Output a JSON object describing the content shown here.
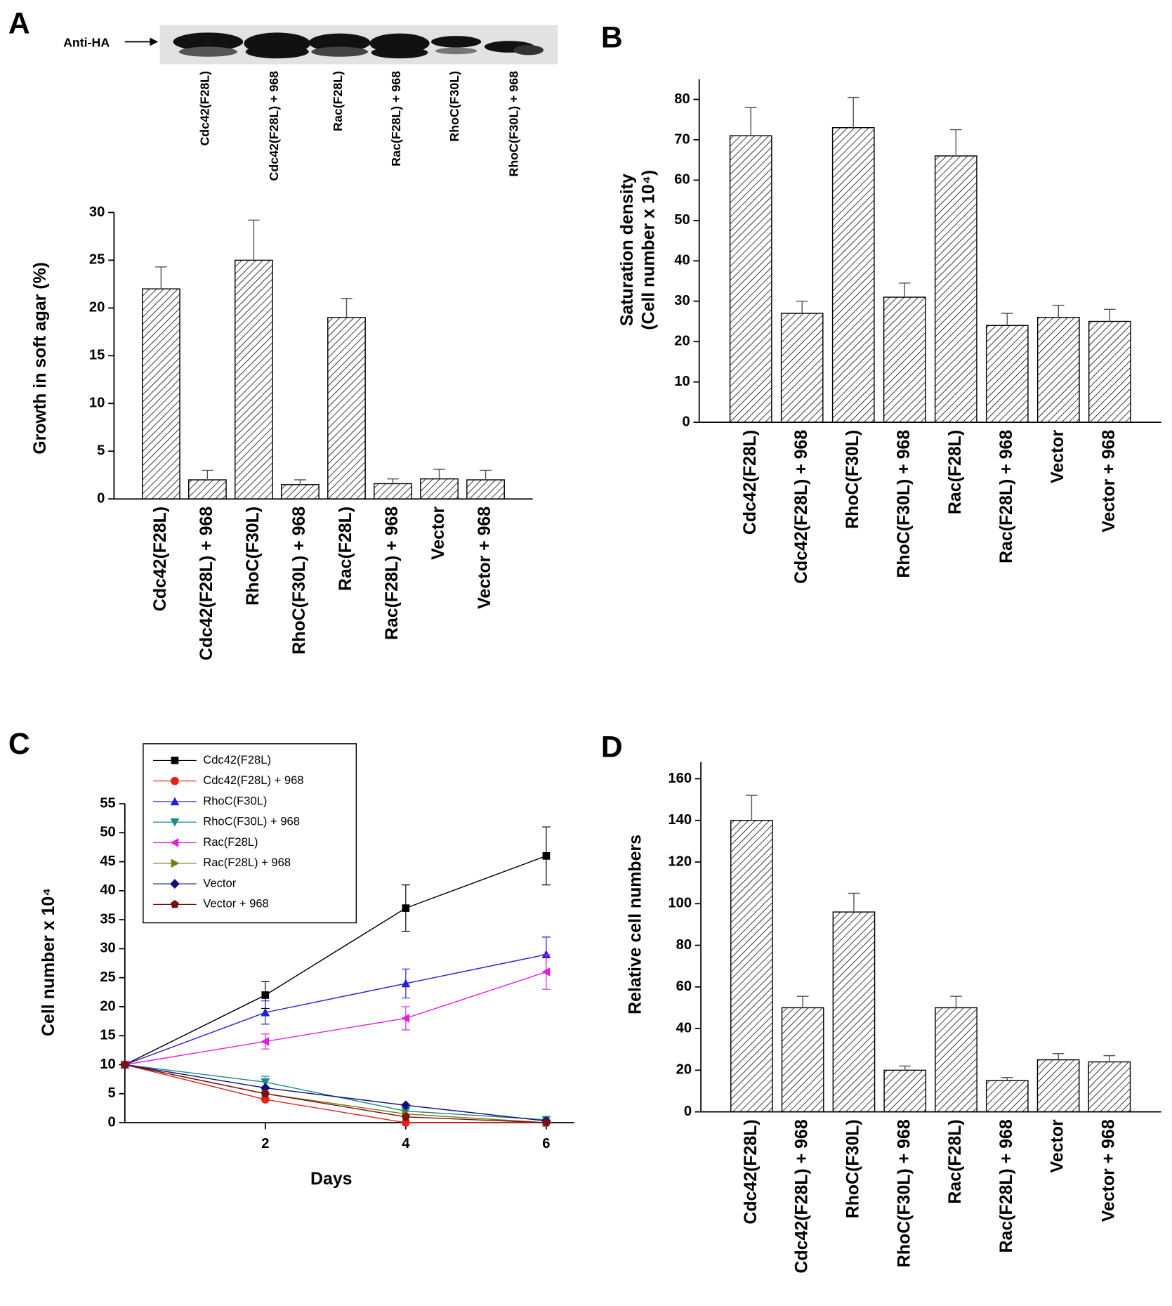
{
  "chart_data": [
    {
      "type": "bar",
      "panel": "A",
      "blot_label": "Anti-HA",
      "blot_lanes": [
        "Cdc42(F28L)",
        "Cdc42(F28L) + 968",
        "Rac(F28L)",
        "Rac(F28L) + 968",
        "RhoC(F30L)",
        "RhoC(F30L) + 968"
      ],
      "ylabel": "Growth in soft agar (%)",
      "categories": [
        "Cdc42(F28L)",
        "Cdc42(F28L) + 968",
        "RhoC(F30L)",
        "RhoC(F30L) + 968",
        "Rac(F28L)",
        "Rac(F28L) + 968",
        "Vector",
        "Vector + 968"
      ],
      "values": [
        22,
        2,
        25,
        1.5,
        19,
        1.6,
        2.1,
        2
      ],
      "errors": [
        2.3,
        1,
        4.2,
        0.5,
        2,
        0.5,
        1,
        1
      ],
      "ylim": [
        0,
        30
      ],
      "yticks": [
        0,
        5,
        10,
        15,
        20,
        25,
        30
      ]
    },
    {
      "type": "bar",
      "panel": "B",
      "ylabel": [
        "Saturation density",
        "(Cell number x 10⁴)"
      ],
      "categories": [
        "Cdc42(F28L)",
        "Cdc42(F28L) + 968",
        "RhoC(F30L)",
        "RhoC(F30L) + 968",
        "Rac(F28L)",
        "Rac(F28L) + 968",
        "Vector",
        "Vector + 968"
      ],
      "values": [
        71,
        27,
        73,
        31,
        66,
        24,
        26,
        25
      ],
      "errors": [
        7,
        3,
        7.5,
        3.5,
        6.5,
        3,
        3,
        3
      ],
      "ylim": [
        0,
        85
      ],
      "yticks": [
        0,
        10,
        20,
        30,
        40,
        50,
        60,
        70,
        80
      ]
    },
    {
      "type": "line",
      "panel": "C",
      "xlabel": "Days",
      "ylabel": "Cell number x 10⁴",
      "x": [
        0,
        2,
        4,
        6
      ],
      "xlim": [
        0,
        6.4
      ],
      "xticks": [
        2,
        4,
        6
      ],
      "ylim": [
        0,
        55
      ],
      "yticks": [
        0,
        5,
        10,
        15,
        20,
        25,
        30,
        35,
        40,
        45,
        50,
        55
      ],
      "series": [
        {
          "name": "Cdc42(F28L)",
          "color": "#000000",
          "marker": "square",
          "values": [
            10,
            22,
            37,
            46
          ],
          "errors": [
            0,
            2.3,
            4,
            5
          ]
        },
        {
          "name": "Cdc42(F28L) + 968",
          "color": "#e8201a",
          "marker": "circle",
          "values": [
            10,
            4,
            0,
            0
          ]
        },
        {
          "name": "RhoC(F30L)",
          "color": "#2020e0",
          "marker": "triangle-up",
          "values": [
            10,
            19,
            24,
            29
          ],
          "errors": [
            0,
            2,
            2.5,
            3
          ]
        },
        {
          "name": "RhoC(F30L) + 968",
          "color": "#1a8a8a",
          "marker": "triangle-down",
          "values": [
            10,
            7,
            2,
            0.5
          ],
          "errors": [
            0,
            1,
            0,
            0
          ]
        },
        {
          "name": "Rac(F28L)",
          "color": "#e020e0",
          "marker": "triangle-left",
          "values": [
            10,
            14,
            18,
            26
          ],
          "errors": [
            0,
            1.3,
            2,
            3
          ]
        },
        {
          "name": "Rac(F28L) + 968",
          "color": "#7a7a10",
          "marker": "triangle-right",
          "values": [
            10,
            5,
            1.5,
            0
          ]
        },
        {
          "name": "Vector",
          "color": "#10107a",
          "marker": "diamond",
          "values": [
            10,
            6,
            3,
            0.3
          ]
        },
        {
          "name": "Vector + 968",
          "color": "#7a1010",
          "marker": "pentagon",
          "values": [
            10,
            5,
            1,
            0
          ]
        }
      ]
    },
    {
      "type": "bar",
      "panel": "D",
      "ylabel": "Relative cell numbers",
      "categories": [
        "Cdc42(F28L)",
        "Cdc42(F28L) + 968",
        "RhoC(F30L)",
        "RhoC(F30L) + 968",
        "Rac(F28L)",
        "Rac(F28L) + 968",
        "Vector",
        "Vector + 968"
      ],
      "values": [
        140,
        50,
        96,
        20,
        50,
        15,
        25,
        24
      ],
      "errors": [
        12,
        5.5,
        9,
        2,
        5.5,
        1.5,
        3,
        3
      ],
      "ylim": [
        0,
        168
      ],
      "yticks": [
        0,
        20,
        40,
        60,
        80,
        100,
        120,
        140,
        160
      ]
    }
  ]
}
